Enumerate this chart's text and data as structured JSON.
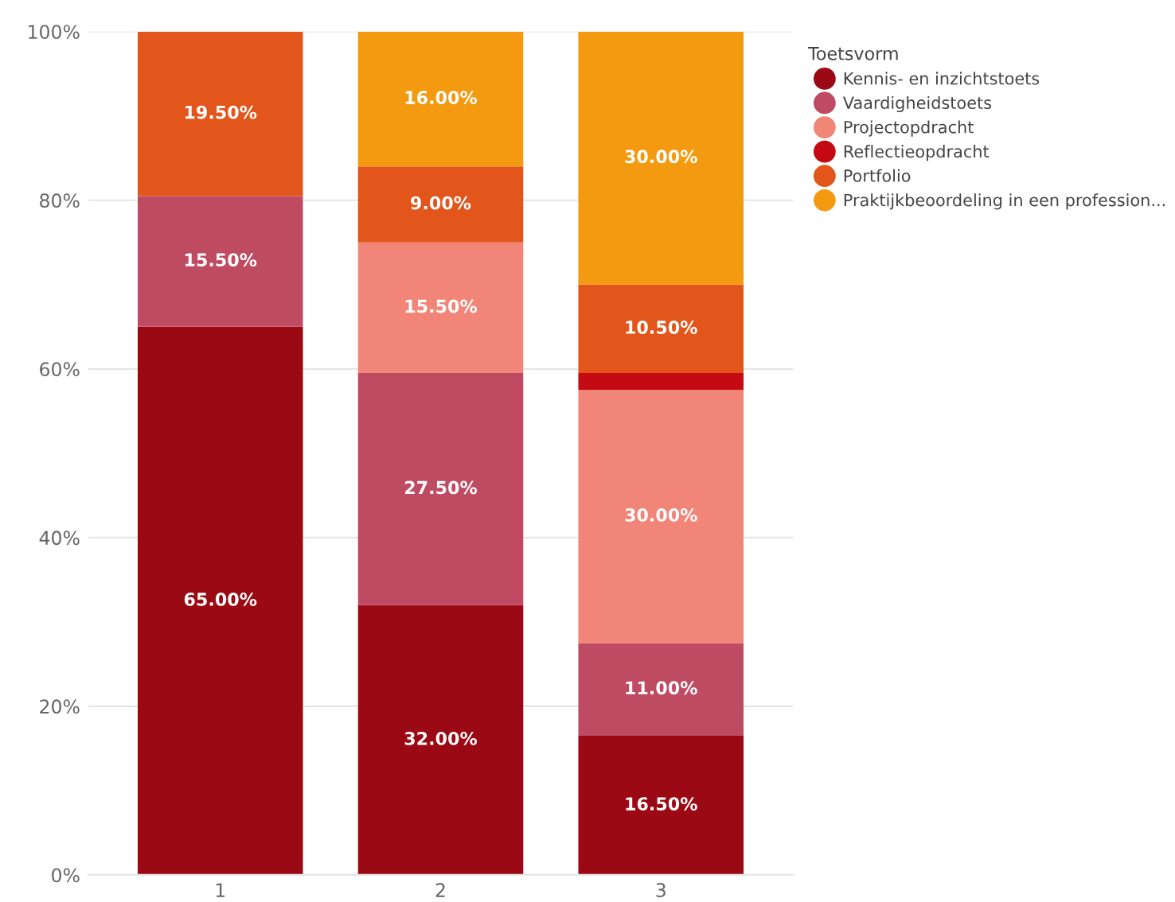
{
  "chart_data": {
    "type": "bar",
    "stacked": true,
    "legend_title": "Toetsvorm",
    "legend": "top right",
    "marker": "circle",
    "grid": "y",
    "categories": [
      "1",
      "2",
      "3"
    ],
    "ylim": [
      0,
      100
    ],
    "yticks": [
      {
        "value": 0,
        "label": "0%"
      },
      {
        "value": 20,
        "label": "20%"
      },
      {
        "value": 40,
        "label": "40%"
      },
      {
        "value": 60,
        "label": "60%"
      },
      {
        "value": 80,
        "label": "80%"
      },
      {
        "value": 100,
        "label": "100%"
      }
    ],
    "series": [
      {
        "name": "Kennis- en inzichtstoets",
        "color": "#9b0a14",
        "values": [
          65,
          32,
          16.5
        ],
        "value_labels": [
          "65.00%",
          "32.00%",
          "16.50%"
        ]
      },
      {
        "name": "Vaardigheidstoets",
        "color": "#bf4b63",
        "values": [
          15.5,
          27.5,
          11
        ],
        "value_labels": [
          "15.50%",
          "27.50%",
          "11.00%"
        ]
      },
      {
        "name": "Projectopdracht",
        "color": "#f08578",
        "values": [
          0,
          15.5,
          30
        ],
        "value_labels": [
          null,
          "15.50%",
          "30.00%"
        ]
      },
      {
        "name": "Reflectieopdracht",
        "color": "#c40a12",
        "values": [
          0,
          0,
          2
        ],
        "value_labels": [
          null,
          null,
          null
        ]
      },
      {
        "name": "Portfolio",
        "color": "#e2561c",
        "values": [
          19.5,
          9,
          10.5
        ],
        "value_labels": [
          "19.50%",
          "9.00%",
          "10.50%"
        ]
      },
      {
        "name": "Praktijkbeoordeling in een profession...",
        "color": "#f39a10",
        "values": [
          0,
          16,
          30
        ],
        "value_labels": [
          null,
          "16.00%",
          "30.00%"
        ]
      }
    ]
  }
}
